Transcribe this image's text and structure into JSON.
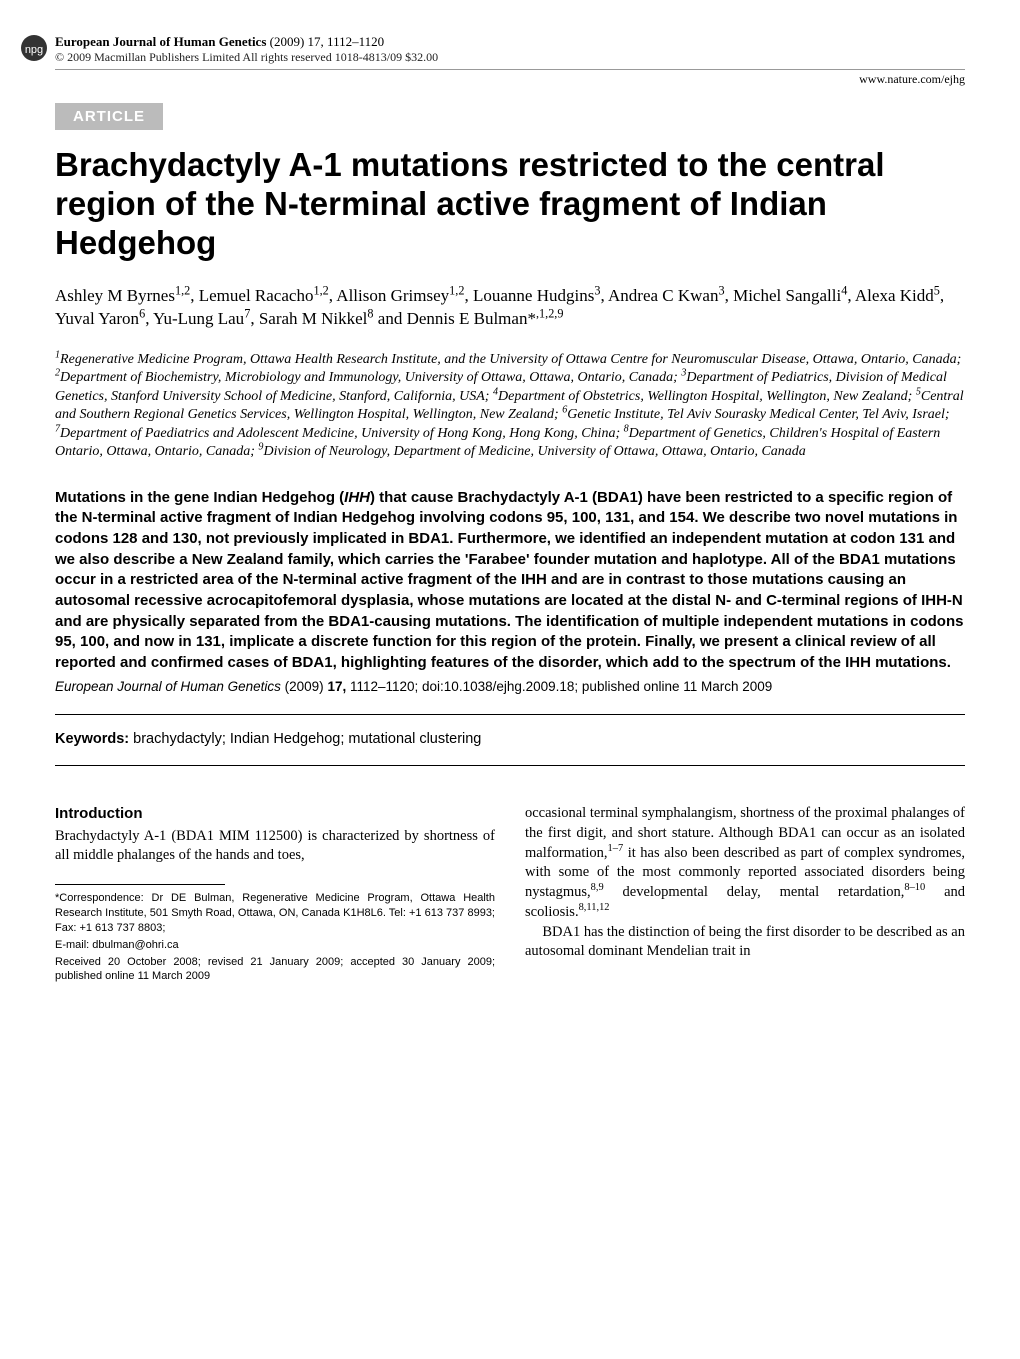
{
  "header": {
    "journal_name": "European Journal of Human Genetics",
    "year_vol_pages": "(2009) 17, 1112–1120",
    "copyright": "© 2009 Macmillan Publishers Limited   All rights reserved 1018-4813/09 $32.00",
    "url": "www.nature.com/ejhg",
    "article_tag": "ARTICLE",
    "npg_logo_fill": "#333333"
  },
  "title": "Brachydactyly A-1 mutations restricted to the central region of the N-terminal active fragment of Indian Hedgehog",
  "authors_html": "Ashley M Byrnes<sup>1,2</sup>, Lemuel Racacho<sup>1,2</sup>, Allison Grimsey<sup>1,2</sup>, Louanne Hudgins<sup>3</sup>, Andrea C Kwan<sup>3</sup>, Michel Sangalli<sup>4</sup>, Alexa Kidd<sup>5</sup>, Yuval Yaron<sup>6</sup>, Yu-Lung Lau<sup>7</sup>, Sarah M Nikkel<sup>8</sup> and Dennis E Bulman*<sup>,1,2,9</sup>",
  "affiliations_html": "<sup>1</sup>Regenerative Medicine Program, Ottawa Health Research Institute, and the University of Ottawa Centre for Neuromuscular Disease, Ottawa, Ontario, Canada; <sup>2</sup>Department of Biochemistry, Microbiology and Immunology, University of Ottawa, Ottawa, Ontario, Canada; <sup>3</sup>Department of Pediatrics, Division of Medical Genetics, Stanford University School of Medicine, Stanford, California, USA; <sup>4</sup>Department of Obstetrics, Wellington Hospital, Wellington, New Zealand; <sup>5</sup>Central and Southern Regional Genetics Services, Wellington Hospital, Wellington, New Zealand; <sup>6</sup>Genetic Institute, Tel Aviv Sourasky Medical Center, Tel Aviv, Israel; <sup>7</sup>Department of Paediatrics and Adolescent Medicine, University of Hong Kong, Hong Kong, China; <sup>8</sup>Department of Genetics, Children's Hospital of Eastern Ontario, Ottawa, Ontario, Canada; <sup>9</sup>Division of Neurology, Department of Medicine, University of Ottawa, Ottawa, Ontario, Canada",
  "abstract_html": "Mutations in the gene Indian Hedgehog (<i>IHH</i>) that cause Brachydactyly A-1 (BDA1) have been restricted to a specific region of the N-terminal active fragment of Indian Hedgehog involving codons 95, 100, 131, and 154. We describe two novel mutations in codons 128 and 130, not previously implicated in BDA1. Furthermore, we identified an independent mutation at codon 131 and we also describe a New Zealand family, which carries the 'Farabee' founder mutation and haplotype. All of the BDA1 mutations occur in a restricted area of the N-terminal active fragment of the IHH and are in contrast to those mutations causing an autosomal recessive acrocapitofemoral dysplasia, whose mutations are located at the distal N- and C-terminal regions of IHH-N and are physically separated from the BDA1-causing mutations. The identification of multiple independent mutations in codons 95, 100, and now in 131, implicate a discrete function for this region of the protein. Finally, we present a clinical review of all reported and confirmed cases of BDA1, highlighting features of the disorder, which add to the spectrum of the IHH mutations.",
  "citation_line": "European Journal of Human Genetics (2009) 17, 1112–1120; doi:10.1038/ejhg.2009.18; published online 11 March 2009",
  "keywords": {
    "label": "Keywords:",
    "text": " brachydactyly; Indian Hedgehog; mutational clustering"
  },
  "body": {
    "left": {
      "heading": "Introduction",
      "para1": "Brachydactyly A-1 (BDA1 MIM 112500) is characterized by shortness of all middle phalanges of the hands and toes,"
    },
    "right": {
      "para1_html": "occasional terminal symphalangism, shortness of the proximal phalanges of the first digit, and short stature. Although BDA1 can occur as an isolated malformation,<sup>1–7</sup> it has also been described as part of complex syndromes, with some of the most commonly reported associated disorders being nystagmus,<sup>8,9</sup> developmental delay, mental retardation,<sup>8–10</sup> and scoliosis.<sup>8,11,12</sup>",
      "para2": "BDA1 has the distinction of being the first disorder to be described as an autosomal dominant Mendelian trait in"
    }
  },
  "footnotes": {
    "correspondence": "*Correspondence: Dr DE Bulman, Regenerative Medicine Program, Ottawa Health Research Institute, 501 Smyth Road, Ottawa, ON, Canada K1H8L6. Tel: +1 613 737 8993; Fax: +1 613 737 8803;",
    "email_label": "E-mail: ",
    "email": "dbulman@ohri.ca",
    "received": "Received 20 October 2008; revised 21 January 2009; accepted 30 January 2009; published online 11 March 2009"
  }
}
